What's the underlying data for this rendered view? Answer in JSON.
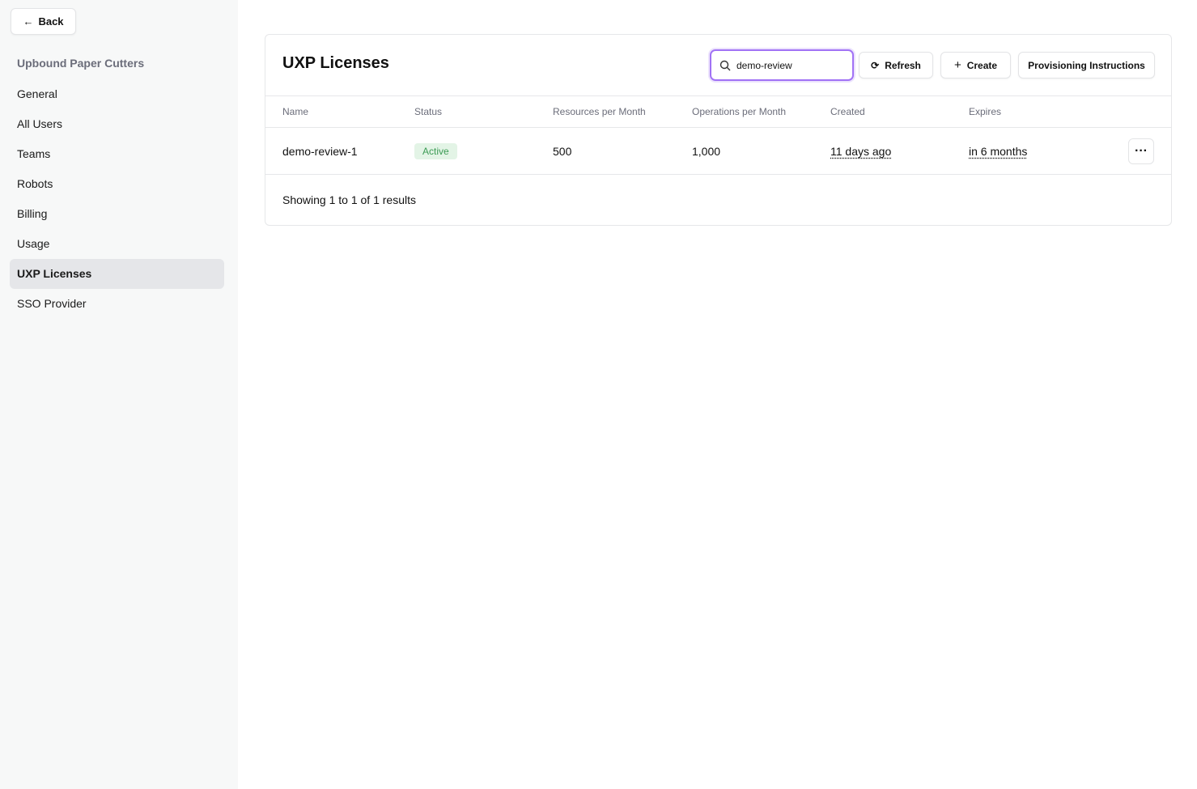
{
  "sidebar": {
    "back_label": "Back",
    "org_name": "Upbound Paper Cutters",
    "items": [
      {
        "label": "General"
      },
      {
        "label": "All Users"
      },
      {
        "label": "Teams"
      },
      {
        "label": "Robots"
      },
      {
        "label": "Billing"
      },
      {
        "label": "Usage"
      },
      {
        "label": "UXP Licenses",
        "active": true
      },
      {
        "label": "SSO Provider"
      }
    ]
  },
  "main": {
    "title": "UXP Licenses",
    "search": {
      "value": "demo-review"
    },
    "refresh_label": "Refresh",
    "create_label": "Create",
    "provisioning_label": "Provisioning Instructions",
    "columns": [
      "Name",
      "Status",
      "Resources per Month",
      "Operations per Month",
      "Created",
      "Expires"
    ],
    "rows": [
      {
        "name": "demo-review-1",
        "status": "Active",
        "resources": "500",
        "operations": "1,000",
        "created": "11 days ago",
        "expires": "in 6 months"
      }
    ],
    "footer": "Showing 1 to 1 of 1 results"
  },
  "colors": {
    "accent": "#a172f5",
    "active_badge": "#3c9b55"
  }
}
